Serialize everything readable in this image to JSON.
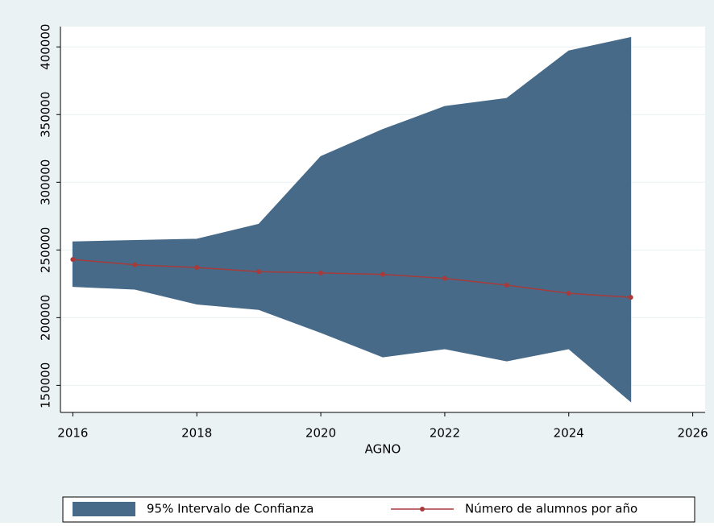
{
  "chart_data": {
    "type": "line",
    "x_label": "AGNO",
    "x": [
      2016,
      2017,
      2018,
      2019,
      2020,
      2021,
      2022,
      2023,
      2024,
      2025
    ],
    "series": [
      {
        "name": "95% Intervalo de Confianza",
        "color": "#476a89",
        "upper": [
          256000,
          257000,
          258000,
          269000,
          319000,
          339000,
          356000,
          362000,
          397000,
          407000
        ],
        "lower": [
          223000,
          221000,
          210000,
          206000,
          189000,
          171000,
          177000,
          168000,
          177000,
          138000
        ]
      },
      {
        "name": "Número de alumnos por año",
        "color": "#a83a3a",
        "values": [
          243000,
          239000,
          237000,
          234000,
          233000,
          232000,
          229000,
          224000,
          218000,
          215000
        ]
      }
    ],
    "xlim": [
      2015.8,
      2026.2
    ],
    "xticks": [
      2016,
      2018,
      2020,
      2022,
      2024,
      2026
    ],
    "ylim": [
      130000,
      415000
    ],
    "yticks": [
      150000,
      200000,
      250000,
      300000,
      350000,
      400000
    ],
    "grid": true
  }
}
